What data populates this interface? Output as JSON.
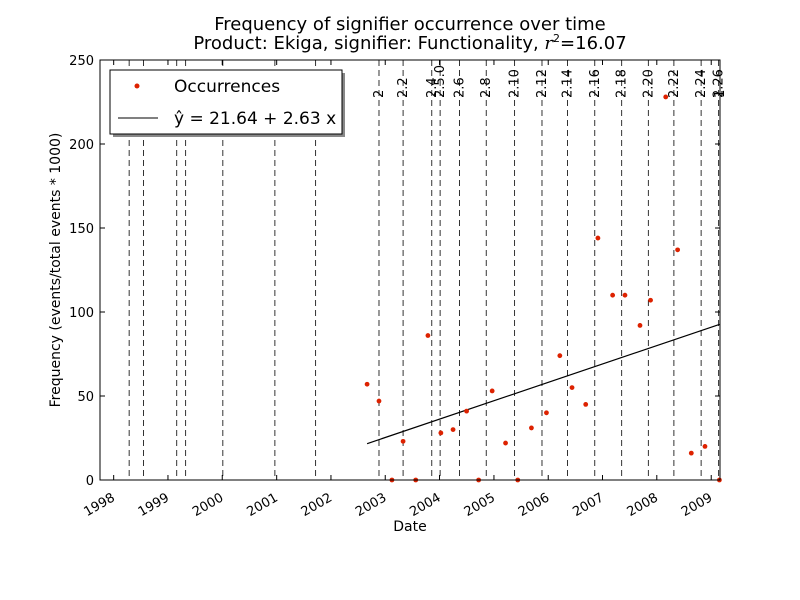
{
  "chart_data": {
    "type": "scatter",
    "title": "Frequency of signifier occurrence over time",
    "subtitle_prefix": "Product: Ekiga, signifier: Functionality, ",
    "subtitle_r2_label": "r",
    "subtitle_r2_exp": "2",
    "subtitle_r2_value": "=16.07",
    "xlabel": "Date",
    "ylabel": "Frequency (events/total events * 1000)",
    "xlim": [
      "1997-10-01",
      "2009-03-01"
    ],
    "ylim": [
      0,
      250
    ],
    "yticks": [
      0,
      50,
      100,
      150,
      200,
      250
    ],
    "xticks": [
      {
        "label": "1998",
        "date": "1998-01-01"
      },
      {
        "label": "1999",
        "date": "1999-01-01"
      },
      {
        "label": "2000",
        "date": "2000-01-01"
      },
      {
        "label": "2001",
        "date": "2001-01-01"
      },
      {
        "label": "2002",
        "date": "2002-01-01"
      },
      {
        "label": "2003",
        "date": "2003-01-01"
      },
      {
        "label": "2004",
        "date": "2004-01-01"
      },
      {
        "label": "2005",
        "date": "2005-01-01"
      },
      {
        "label": "2006",
        "date": "2006-01-01"
      },
      {
        "label": "2007",
        "date": "2007-01-01"
      },
      {
        "label": "2008",
        "date": "2008-01-01"
      },
      {
        "label": "2009",
        "date": "2009-01-01"
      }
    ],
    "releases": [
      {
        "label": "",
        "date": "1998-04-15"
      },
      {
        "label": "",
        "date": "1998-07-20"
      },
      {
        "label": "",
        "date": "1999-03-01"
      },
      {
        "label": "",
        "date": "1999-04-30"
      },
      {
        "label": "",
        "date": "2000-01-05"
      },
      {
        "label": "",
        "date": "2000-12-20"
      },
      {
        "label": "",
        "date": "2001-09-20"
      },
      {
        "label": "2",
        "date": "2002-11-20"
      },
      {
        "label": "2.2",
        "date": "2003-05-01"
      },
      {
        "label": "2.4",
        "date": "2003-11-10"
      },
      {
        "label": "2.5.0",
        "date": "2004-01-05"
      },
      {
        "label": "2.6",
        "date": "2004-05-15"
      },
      {
        "label": "2.8",
        "date": "2004-11-10"
      },
      {
        "label": "2.10",
        "date": "2005-05-20"
      },
      {
        "label": "2.12",
        "date": "2005-11-20"
      },
      {
        "label": "2.14",
        "date": "2006-05-10"
      },
      {
        "label": "2.16",
        "date": "2006-11-10"
      },
      {
        "label": "2.18",
        "date": "2007-05-10"
      },
      {
        "label": "2.20",
        "date": "2007-11-05"
      },
      {
        "label": "2.22",
        "date": "2008-04-25"
      },
      {
        "label": "2.24",
        "date": "2008-10-25"
      },
      {
        "label": "2.26",
        "date": "2009-02-20"
      },
      {
        "label": "1",
        "date": "2009-03-01"
      }
    ],
    "series": [
      {
        "name": "Occurrences",
        "color": "#dd2200",
        "points": [
          {
            "x": "2002-09-01",
            "y": 57
          },
          {
            "x": "2002-11-20",
            "y": 47
          },
          {
            "x": "2003-02-15",
            "y": 0
          },
          {
            "x": "2003-05-01",
            "y": 23
          },
          {
            "x": "2003-07-25",
            "y": 0
          },
          {
            "x": "2003-10-15",
            "y": 86
          },
          {
            "x": "2004-01-10",
            "y": 28
          },
          {
            "x": "2004-04-01",
            "y": 30
          },
          {
            "x": "2004-07-01",
            "y": 41
          },
          {
            "x": "2004-09-20",
            "y": 0
          },
          {
            "x": "2004-12-20",
            "y": 53
          },
          {
            "x": "2005-03-20",
            "y": 22
          },
          {
            "x": "2005-06-10",
            "y": 0
          },
          {
            "x": "2005-09-10",
            "y": 31
          },
          {
            "x": "2005-12-20",
            "y": 40
          },
          {
            "x": "2006-03-20",
            "y": 74
          },
          {
            "x": "2006-06-10",
            "y": 55
          },
          {
            "x": "2006-09-10",
            "y": 45
          },
          {
            "x": "2006-12-01",
            "y": 144
          },
          {
            "x": "2007-03-10",
            "y": 110
          },
          {
            "x": "2007-06-01",
            "y": 110
          },
          {
            "x": "2007-09-10",
            "y": 92
          },
          {
            "x": "2007-11-20",
            "y": 107
          },
          {
            "x": "2008-03-01",
            "y": 228
          },
          {
            "x": "2008-05-20",
            "y": 137
          },
          {
            "x": "2008-08-20",
            "y": 16
          },
          {
            "x": "2008-11-20",
            "y": 20
          },
          {
            "x": "2009-02-25",
            "y": 0
          }
        ]
      },
      {
        "name": "ŷ = 21.64 + 2.63 x",
        "type": "line",
        "color": "#000000",
        "points": [
          {
            "x": "2002-09-01",
            "y": 21.64
          },
          {
            "x": "2009-02-25",
            "y": 92.6
          }
        ]
      }
    ],
    "legend_position": "top-left",
    "grid": false
  }
}
